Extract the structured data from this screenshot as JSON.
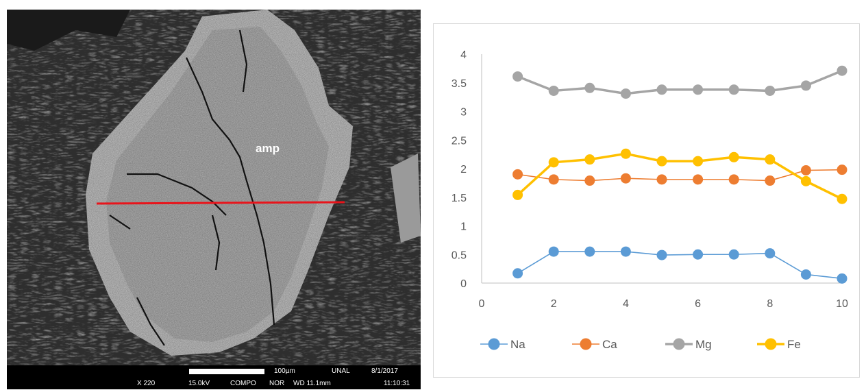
{
  "image_panel": {
    "mineral_label": "amp",
    "caption": {
      "magnification": "X 220",
      "voltage": "15.0kV",
      "mode": "COMPO",
      "signal": "NOR",
      "scale_bar": "100µm",
      "working_distance": "WD 11.1mm",
      "institution": "UNAL",
      "date": "8/1/2017",
      "time": "11:10:31"
    },
    "colors": {
      "transect_line": "#e8141b",
      "grain": "#b4b4b4",
      "rim": "#c8c8c8",
      "matrix": "#3a3a3a"
    }
  },
  "chart_data": {
    "type": "scatter",
    "mode": "lines+markers",
    "title": "",
    "xlabel": "",
    "ylabel": "",
    "xlim": [
      0,
      10
    ],
    "ylim": [
      0,
      4
    ],
    "x_ticks": [
      "0",
      "2",
      "4",
      "6",
      "8",
      "10"
    ],
    "y_ticks": [
      "0",
      "0.5",
      "1",
      "1.5",
      "2",
      "2.5",
      "3",
      "3.5",
      "4"
    ],
    "grid": false,
    "legend_position": "bottom",
    "x": [
      1,
      2,
      3,
      4,
      5,
      6,
      7,
      8,
      9,
      10
    ],
    "series": [
      {
        "name": "Na",
        "color": "#5b9bd5",
        "line_width": "thin",
        "values": [
          0.17,
          0.55,
          0.55,
          0.55,
          0.49,
          0.5,
          0.5,
          0.52,
          0.15,
          0.08
        ]
      },
      {
        "name": "Ca",
        "color": "#ed7d31",
        "line_width": "thin",
        "values": [
          1.9,
          1.81,
          1.79,
          1.83,
          1.81,
          1.81,
          1.81,
          1.79,
          1.97,
          1.98
        ]
      },
      {
        "name": "Mg",
        "color": "#a5a5a5",
        "line_width": "thick",
        "values": [
          3.61,
          3.36,
          3.41,
          3.31,
          3.38,
          3.38,
          3.38,
          3.36,
          3.45,
          3.71
        ]
      },
      {
        "name": "Fe",
        "color": "#ffc000",
        "line_width": "thick",
        "values": [
          1.54,
          2.11,
          2.16,
          2.26,
          2.13,
          2.13,
          2.2,
          2.16,
          1.78,
          1.47
        ]
      }
    ]
  }
}
